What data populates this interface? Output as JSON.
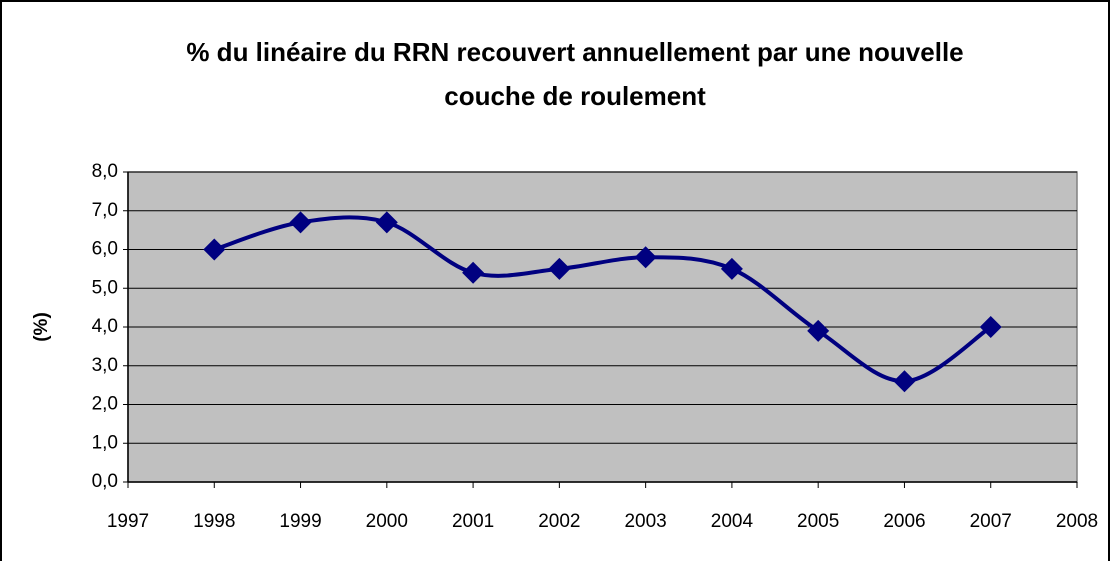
{
  "chart_data": {
    "type": "line",
    "title": "% du linéaire du RRN recouvert annuellement par une nouvelle couche de roulement",
    "ylabel": "(%)",
    "x": [
      1998,
      1999,
      2000,
      2001,
      2002,
      2003,
      2004,
      2005,
      2006,
      2007
    ],
    "series": [
      {
        "name": "RRN",
        "color": "#000080",
        "values": [
          6.0,
          6.7,
          6.7,
          5.4,
          5.5,
          5.8,
          5.5,
          3.9,
          2.6,
          4.0
        ]
      }
    ],
    "xlim": [
      1997,
      2008
    ],
    "xticks": [
      1997,
      1998,
      1999,
      2000,
      2001,
      2002,
      2003,
      2004,
      2005,
      2006,
      2007,
      2008
    ],
    "ylim": [
      0,
      8
    ],
    "yticks": [
      {
        "value": 0,
        "label": "0,0"
      },
      {
        "value": 1,
        "label": "1,0"
      },
      {
        "value": 2,
        "label": "2,0"
      },
      {
        "value": 3,
        "label": "3,0"
      },
      {
        "value": 4,
        "label": "4,0"
      },
      {
        "value": 5,
        "label": "5,0"
      },
      {
        "value": 6,
        "label": "6,0"
      },
      {
        "value": 7,
        "label": "7,0"
      },
      {
        "value": 8,
        "label": "8,0"
      }
    ],
    "grid": true,
    "smooth": true,
    "plot_background": "#c0c0c0"
  }
}
